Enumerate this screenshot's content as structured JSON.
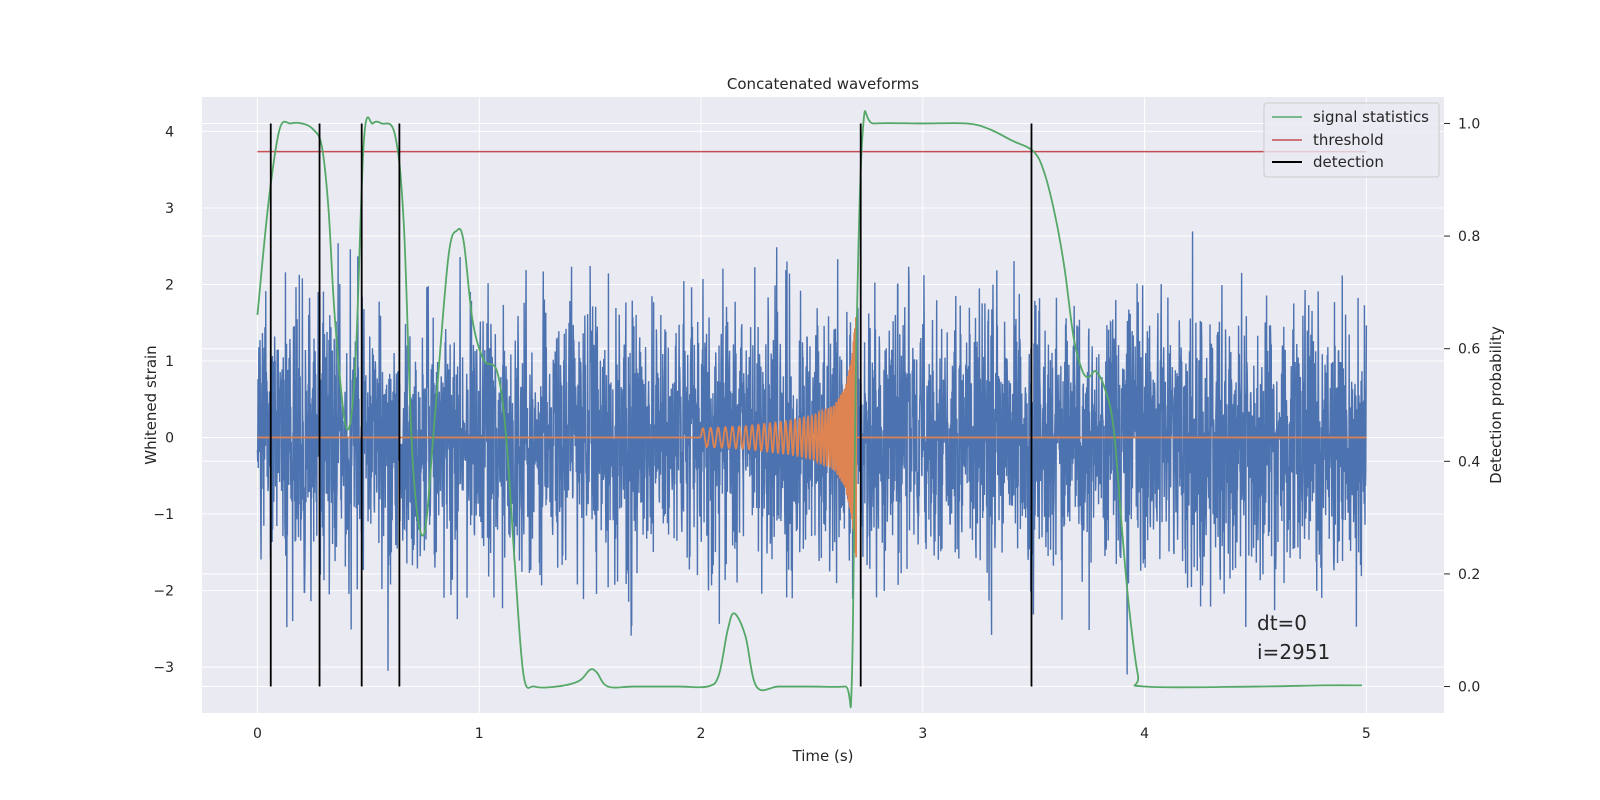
{
  "chart_data": {
    "type": "line",
    "title": "Concatenated waveforms",
    "xlabel": "Time (s)",
    "ylabel": "Whitened strain",
    "ylabel_right": "Detection probability",
    "xlim": [
      -0.25,
      5.35
    ],
    "ylim": [
      -3.6,
      4.45
    ],
    "ylim_right": [
      -0.047,
      1.047
    ],
    "x_ticks": [
      0,
      1,
      2,
      3,
      4,
      5
    ],
    "x_tick_labels": [
      "0",
      "1",
      "2",
      "3",
      "4",
      "5"
    ],
    "y_ticks": [
      -3,
      -2,
      -1,
      0,
      1,
      2,
      3,
      4
    ],
    "y_tick_labels": [
      "−3",
      "−2",
      "−1",
      "0",
      "1",
      "2",
      "3",
      "4"
    ],
    "y_ticks_right": [
      0.0,
      0.2,
      0.4,
      0.6,
      0.8,
      1.0
    ],
    "y_tick_labels_right": [
      "0.0",
      "0.2",
      "0.4",
      "0.6",
      "0.8",
      "1.0"
    ],
    "grid": true,
    "legend_position": "top-right",
    "legend": [
      "signal statistics",
      "threshold",
      "detection"
    ],
    "colors": {
      "strain": "#4c72b0",
      "injected": "#dd8452",
      "signal_statistics": "#55a868",
      "threshold": "#c44e52",
      "detection": "#000000",
      "background": "#eaeaf2",
      "grid": "#ffffff"
    },
    "series": [
      {
        "axis": "left",
        "sampled": true,
        "x_range": [
          0,
          5
        ],
        "noise_envelope": [
          -2.5,
          2.5
        ]
      },
      {
        "axis": "left",
        "x": [
          2.0,
          2.2,
          2.4,
          2.5,
          2.6,
          2.65,
          2.68,
          2.7
        ],
        "amplitude": [
          0.12,
          0.15,
          0.22,
          0.28,
          0.42,
          0.65,
          1.05,
          1.65
        ]
      },
      {
        "name": "signal statistics",
        "axis": "right",
        "x": [
          0.0,
          0.05,
          0.1,
          0.15,
          0.2,
          0.25,
          0.29,
          0.32,
          0.35,
          0.4,
          0.44,
          0.48,
          0.52,
          0.56,
          0.62,
          0.66,
          0.7,
          0.75,
          0.8,
          0.86,
          0.9,
          0.93,
          0.97,
          1.02,
          1.08,
          1.12,
          1.16,
          1.2,
          1.25,
          1.35,
          1.45,
          1.5,
          1.53,
          1.58,
          1.7,
          1.9,
          2.03,
          2.08,
          2.12,
          2.15,
          2.2,
          2.25,
          2.35,
          2.5,
          2.65,
          2.68,
          2.7,
          2.73,
          2.78,
          3.0,
          3.2,
          3.3,
          3.4,
          3.5,
          3.55,
          3.6,
          3.64,
          3.68,
          3.72,
          3.75,
          3.78,
          3.82,
          3.86,
          3.9,
          3.93,
          3.97,
          4.0,
          4.5,
          4.8,
          4.98
        ],
        "y": [
          0.66,
          0.86,
          0.99,
          1.0,
          1.0,
          0.99,
          0.96,
          0.85,
          0.65,
          0.46,
          0.56,
          0.97,
          1.0,
          1.0,
          0.98,
          0.82,
          0.4,
          0.27,
          0.48,
          0.76,
          0.81,
          0.79,
          0.65,
          0.58,
          0.56,
          0.45,
          0.22,
          0.02,
          0.0,
          0.0,
          0.01,
          0.03,
          0.025,
          0.0,
          0.0,
          0.0,
          0.0,
          0.02,
          0.1,
          0.13,
          0.09,
          0.0,
          0.0,
          0.0,
          0.0,
          0.01,
          0.6,
          0.99,
          1.0,
          1.0,
          1.0,
          0.99,
          0.97,
          0.95,
          0.91,
          0.83,
          0.74,
          0.62,
          0.56,
          0.55,
          0.56,
          0.53,
          0.46,
          0.27,
          0.14,
          0.02,
          0.0,
          0.0,
          0.002,
          0.002
        ]
      },
      {
        "name": "threshold",
        "axis": "right",
        "x": [
          0,
          5
        ],
        "y": [
          0.95,
          0.95
        ]
      },
      {
        "name": "detection",
        "type": "vlines",
        "x": [
          0.06,
          0.28,
          0.47,
          0.64,
          2.72,
          3.49
        ]
      }
    ]
  },
  "annotation": {
    "dt_label": "dt=0",
    "i_label": "i=2951"
  }
}
